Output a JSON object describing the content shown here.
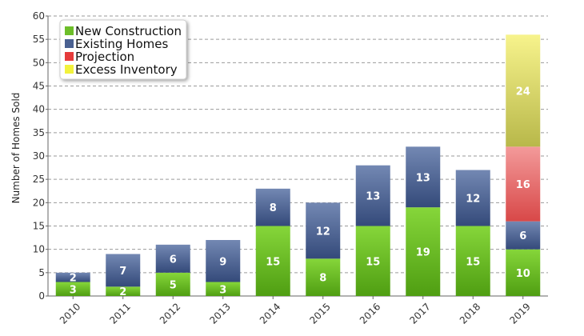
{
  "chart_data": {
    "type": "bar",
    "stacked": true,
    "title": "",
    "xlabel": "",
    "ylabel": "Number of Homes Sold",
    "ylim": [
      0,
      60
    ],
    "yticks": [
      0,
      5,
      10,
      15,
      20,
      25,
      30,
      35,
      40,
      45,
      50,
      55,
      60
    ],
    "grid": true,
    "legend_position": "top-left",
    "categories": [
      "2010",
      "2011",
      "2012",
      "2013",
      "2014",
      "2015",
      "2016",
      "2017",
      "2018",
      "2019"
    ],
    "series": [
      {
        "name": "New Construction",
        "color": "#6dbe2a",
        "values": [
          3,
          2,
          5,
          3,
          15,
          8,
          15,
          19,
          15,
          10
        ]
      },
      {
        "name": "Existing Homes",
        "color": "#4a6191",
        "values": [
          2,
          7,
          6,
          9,
          8,
          12,
          13,
          13,
          12,
          6
        ]
      },
      {
        "name": "Projection",
        "color": "#e53b3b",
        "values": [
          0,
          0,
          0,
          0,
          0,
          0,
          0,
          0,
          0,
          16
        ]
      },
      {
        "name": "Excess Inventory",
        "color": "#f2f23c",
        "values": [
          0,
          0,
          0,
          0,
          0,
          0,
          0,
          0,
          0,
          24
        ]
      }
    ]
  }
}
